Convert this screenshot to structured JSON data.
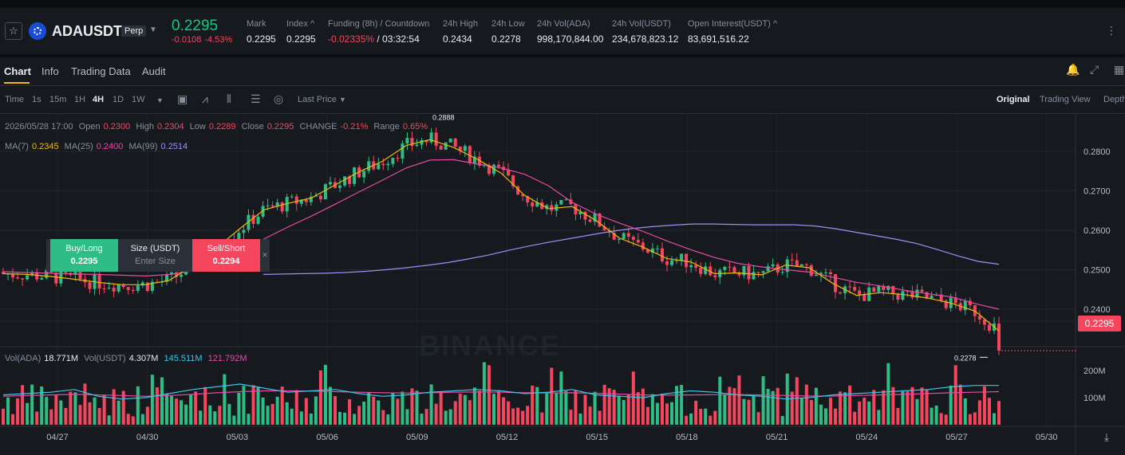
{
  "header": {
    "symbol": "ADAUSDT",
    "contract_type": "Perp",
    "last_price": "0.2295",
    "change_abs": "-0.0108",
    "change_pct": "-4.53%",
    "stats": [
      {
        "label": "Mark",
        "value": "0.2295",
        "red": false
      },
      {
        "label": "Index ^",
        "value": "0.2295",
        "red": false
      },
      {
        "label": "Funding (8h) / Countdown",
        "value": "-0.02335%",
        "value2": " / 03:32:54",
        "red": true
      },
      {
        "label": "24h High",
        "value": "0.2434",
        "red": false
      },
      {
        "label": "24h Low",
        "value": "0.2278",
        "red": false
      },
      {
        "label": "24h Vol(ADA)",
        "value": "998,170,844.00",
        "red": false
      },
      {
        "label": "24h Vol(USDT)",
        "value": "234,678,823.12",
        "red": false
      },
      {
        "label": "Open Interest(USDT) ^",
        "value": "83,691,516.22",
        "red": false
      }
    ]
  },
  "tabs": [
    "Chart",
    "Info",
    "Trading Data",
    "Audit"
  ],
  "toolbar": {
    "intervals": [
      "Time",
      "1s",
      "15m",
      "1H",
      "4H",
      "1D",
      "1W"
    ],
    "active_interval": "4H",
    "price_source": "Last Price",
    "views": [
      "Original",
      "Trading View",
      "Depth"
    ],
    "active_view": "Original"
  },
  "ohlc": {
    "datetime": "2026/05/28 17:00",
    "open_label": "Open",
    "open": "0.2300",
    "high_label": "High",
    "high": "0.2304",
    "low_label": "Low",
    "low": "0.2289",
    "close_label": "Close",
    "close": "0.2295",
    "change_label": "CHANGE",
    "change": "-0.21%",
    "range_label": "Range",
    "range": "0.65%"
  },
  "ma_legend": {
    "ma7_label": "MA(7)",
    "ma7": "0.2345",
    "ma7_color": "#f0b90b",
    "ma25_label": "MA(25)",
    "ma25": "0.2400",
    "ma25_color": "#e649a6",
    "ma99_label": "MA(99)",
    "ma99": "0.2514",
    "ma99_color": "#a28cf7"
  },
  "vol_legend": {
    "vol_ada_label": "Vol(ADA)",
    "vol_ada": "18.771M",
    "vol_usdt_label": "Vol(USDT)",
    "vol_usdt": "4.307M",
    "ma_blue": "145.511M",
    "ma_blue_color": "#3bc6e8",
    "ma_pink": "121.792M",
    "ma_pink_color": "#e649a6"
  },
  "order_widget": {
    "buy_label": "Buy/Long",
    "buy_price": "0.2295",
    "size_label": "Size (USDT)",
    "size_placeholder": "Enter Size",
    "sell_label": "Sell/Short",
    "sell_price": "0.2294"
  },
  "current_price_tag": "0.2295",
  "watermark": "BINANCE",
  "colors": {
    "up": "#2ebd85",
    "down": "#f6465d",
    "bg": "#161a1e"
  },
  "chart_data": {
    "type": "candlestick",
    "price_axis_ticks": [
      "0.2800",
      "0.2700",
      "0.2600",
      "0.2500",
      "0.2400"
    ],
    "price_axis_values": [
      0.28,
      0.27,
      0.26,
      0.25,
      0.24
    ],
    "ylim": [
      0.2305,
      0.2895
    ],
    "volume_axis_ticks": [
      "200M",
      "100M"
    ],
    "volume_axis_values": [
      200,
      100
    ],
    "volume_ylim": [
      0,
      250
    ],
    "x_ticks": [
      "04/27",
      "04/30",
      "05/03",
      "05/06",
      "05/09",
      "05/12",
      "05/15",
      "05/18",
      "05/21",
      "05/24",
      "05/27",
      "05/30"
    ],
    "period_high": {
      "label": "0.2888",
      "value": 0.2888
    },
    "period_low": {
      "label": "0.2278",
      "value": 0.2278
    },
    "ma7_values": [
      0.249,
      0.2488,
      0.2483,
      0.2476,
      0.2468,
      0.2462,
      0.2462,
      0.2473,
      0.251,
      0.2555,
      0.2605,
      0.2652,
      0.2668,
      0.2682,
      0.2715,
      0.2748,
      0.2775,
      0.2815,
      0.283,
      0.281,
      0.278,
      0.2745,
      0.2688,
      0.2655,
      0.266,
      0.2625,
      0.258,
      0.2557,
      0.2528,
      0.252,
      0.249,
      0.2492,
      0.2487,
      0.2512,
      0.2505,
      0.2465,
      0.2435,
      0.2442,
      0.2437,
      0.2428,
      0.2415,
      0.2395,
      0.2345
    ],
    "ma25_values": [
      0.2495,
      0.2493,
      0.2491,
      0.2489,
      0.2488,
      0.2486,
      0.2484,
      0.2488,
      0.2497,
      0.2516,
      0.2545,
      0.2578,
      0.2608,
      0.2636,
      0.2666,
      0.2697,
      0.2727,
      0.2758,
      0.2778,
      0.2779,
      0.2768,
      0.2758,
      0.2742,
      0.2713,
      0.2671,
      0.2641,
      0.2618,
      0.2597,
      0.2573,
      0.2551,
      0.2531,
      0.2516,
      0.2507,
      0.25,
      0.2494,
      0.2481,
      0.2468,
      0.2459,
      0.2448,
      0.2439,
      0.2431,
      0.2414,
      0.24
    ],
    "ma99_values": [
      0.2488,
      0.2489,
      0.249,
      0.2491,
      0.2493,
      0.2496,
      0.25,
      0.2505,
      0.2511,
      0.2518,
      0.2527,
      0.2537,
      0.2549,
      0.256,
      0.257,
      0.2579,
      0.2588,
      0.2597,
      0.2604,
      0.2609,
      0.2613,
      0.2616,
      0.2616,
      0.2615,
      0.2614,
      0.2614,
      0.2614,
      0.2611,
      0.2604,
      0.2595,
      0.2586,
      0.2577,
      0.2566,
      0.2551,
      0.2535,
      0.2521,
      0.2514
    ],
    "volume_ma_blue": [
      110,
      115,
      120,
      130,
      105,
      95,
      100,
      115,
      130,
      140,
      150,
      135,
      120,
      125,
      130,
      115,
      105,
      110,
      120,
      125,
      130,
      125,
      115,
      120,
      130,
      110,
      105,
      100,
      115,
      125,
      120,
      110,
      105,
      95,
      100,
      110,
      115,
      120,
      125,
      130,
      140,
      145,
      145
    ],
    "volume_ma_pink": [
      105,
      108,
      110,
      112,
      110,
      108,
      105,
      108,
      112,
      118,
      122,
      125,
      125,
      124,
      122,
      120,
      118,
      117,
      118,
      120,
      121,
      120,
      118,
      117,
      118,
      116,
      113,
      110,
      109,
      110,
      111,
      111,
      110,
      108,
      106,
      106,
      108,
      110,
      112,
      115,
      118,
      120,
      122
    ]
  }
}
